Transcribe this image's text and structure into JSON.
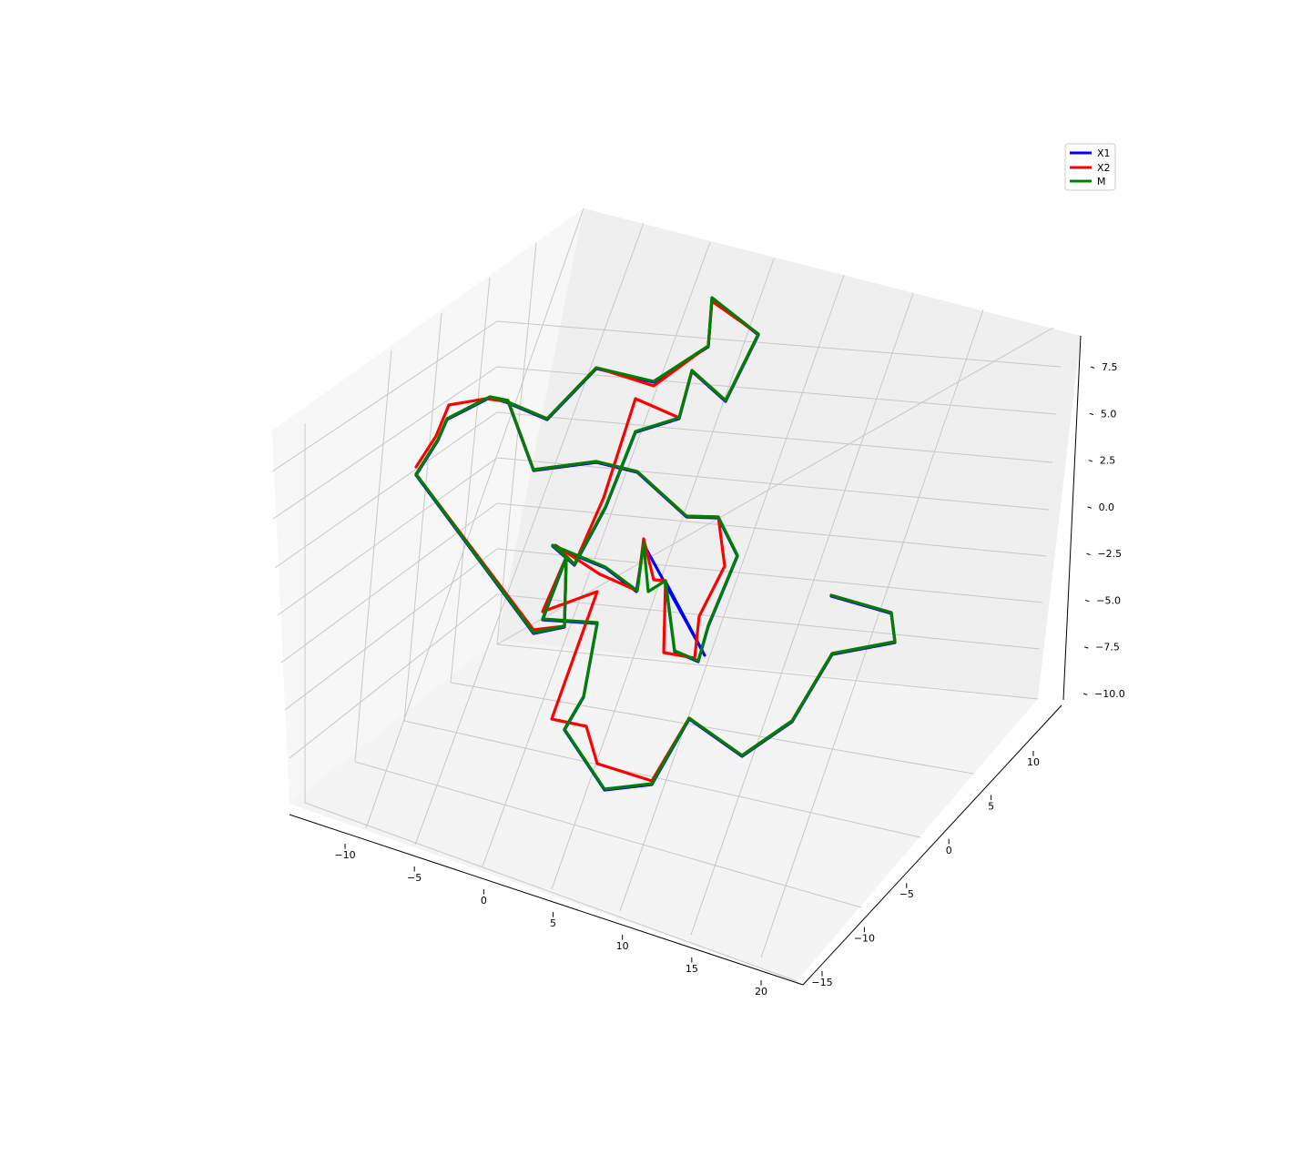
{
  "chart_data": {
    "type": "line",
    "projection": "3d",
    "title": "",
    "xlabel": "",
    "ylabel": "",
    "zlabel": "",
    "grid": true,
    "legend_position": "top-right",
    "x_ticks": [
      "−10",
      "−5",
      "0",
      "5",
      "10",
      "15",
      "20"
    ],
    "y_ticks": [
      "−15",
      "−10",
      "−5",
      "0",
      "5",
      "10"
    ],
    "z_ticks": [
      "−10.0",
      "−7.5",
      "−5.0",
      "−2.5",
      "0.0",
      "2.5",
      "5.0",
      "7.5"
    ],
    "series": [
      {
        "name": "X1",
        "color": "#0000ff"
      },
      {
        "name": "X2",
        "color": "#ff0000"
      },
      {
        "name": "M",
        "color": "#008000"
      }
    ]
  }
}
